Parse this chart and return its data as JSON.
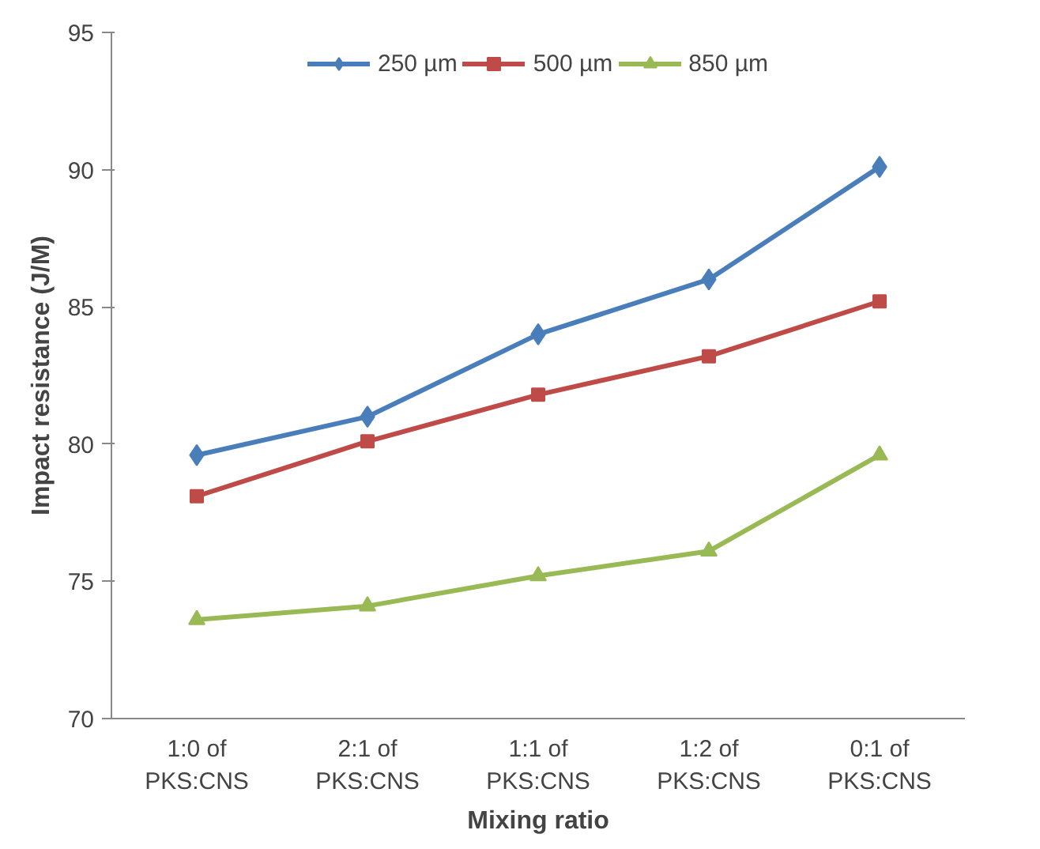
{
  "chart_data": {
    "type": "line",
    "xlabel": "Mixing ratio",
    "ylabel": "Impact resistance (J/M)",
    "categories": [
      "1:0 of\nPKS:CNS",
      "2:1 of\nPKS:CNS",
      "1:1 of\nPKS:CNS",
      "1:2 of\nPKS:CNS",
      "0:1 of\nPKS:CNS"
    ],
    "series": [
      {
        "name": "250 µm",
        "color": "#4a7ebb",
        "marker": "diamond",
        "values": [
          79.6,
          81.0,
          84.0,
          86.0,
          90.1
        ]
      },
      {
        "name": "500 µm",
        "color": "#be4b48",
        "marker": "square",
        "values": [
          78.1,
          80.1,
          81.8,
          83.2,
          85.2
        ]
      },
      {
        "name": "850 µm",
        "color": "#98b954",
        "marker": "triangle",
        "values": [
          73.6,
          74.1,
          75.2,
          76.1,
          79.6
        ]
      }
    ],
    "ylim": [
      70,
      95
    ],
    "yticks": [
      70,
      75,
      80,
      85,
      90,
      95
    ],
    "grid": false,
    "legend": "top",
    "line_style": "solid"
  }
}
